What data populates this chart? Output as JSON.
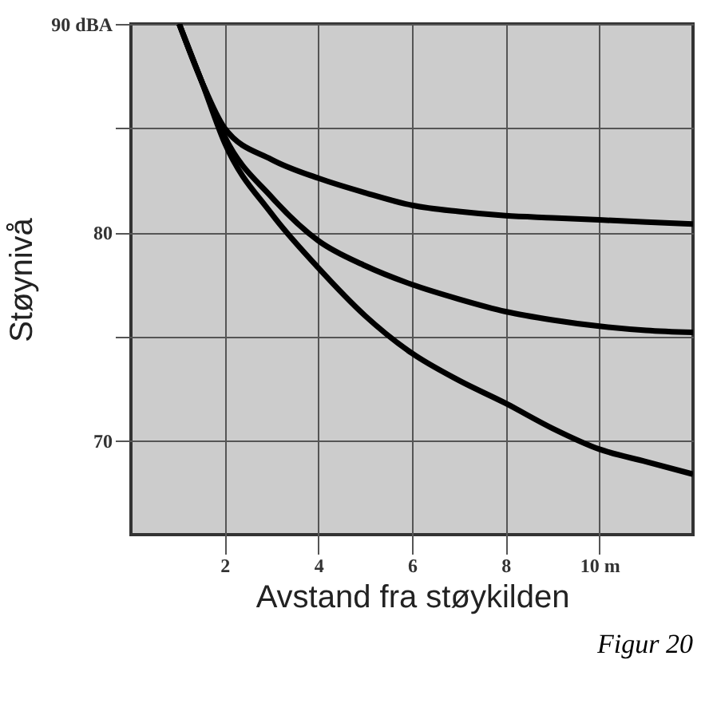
{
  "chart_data": {
    "type": "line",
    "xlabel": "Avstand fra støykilden",
    "ylabel": "Støynivå",
    "x": [
      1.03,
      1.5,
      2,
      3,
      4,
      5,
      6,
      7,
      8,
      9,
      10,
      11,
      12
    ],
    "series": [
      {
        "color": "#000000",
        "values": [
          90,
          87.3,
          85.0,
          83.5,
          82.6,
          81.9,
          81.3,
          81.0,
          80.8,
          80.7,
          80.6,
          80.5,
          80.4
        ]
      },
      {
        "color": "#000000",
        "values": [
          90,
          87.3,
          84.6,
          81.7,
          79.6,
          78.4,
          77.5,
          76.8,
          76.2,
          75.8,
          75.5,
          75.3,
          75.2
        ]
      },
      {
        "color": "#000000",
        "values": [
          90,
          87.3,
          84.3,
          80.9,
          78.3,
          76.0,
          74.2,
          72.9,
          71.8,
          70.6,
          69.6,
          69.0,
          68.4
        ]
      }
    ],
    "xlim": [
      0,
      12
    ],
    "ylim": [
      65.5,
      90
    ],
    "xticks": [
      2,
      4,
      6,
      8,
      {
        "value": 10,
        "label": "10 m"
      }
    ],
    "yticks": [
      {
        "value": 70,
        "label": "70"
      },
      {
        "value": 75,
        "label": null
      },
      {
        "value": 80,
        "label": "80"
      },
      {
        "value": 85,
        "label": null
      },
      {
        "value": 90,
        "label": "90 dBA"
      }
    ],
    "grid": true,
    "line_style": "solid",
    "marker": "none",
    "annotations": [
      "Figur 20"
    ]
  }
}
